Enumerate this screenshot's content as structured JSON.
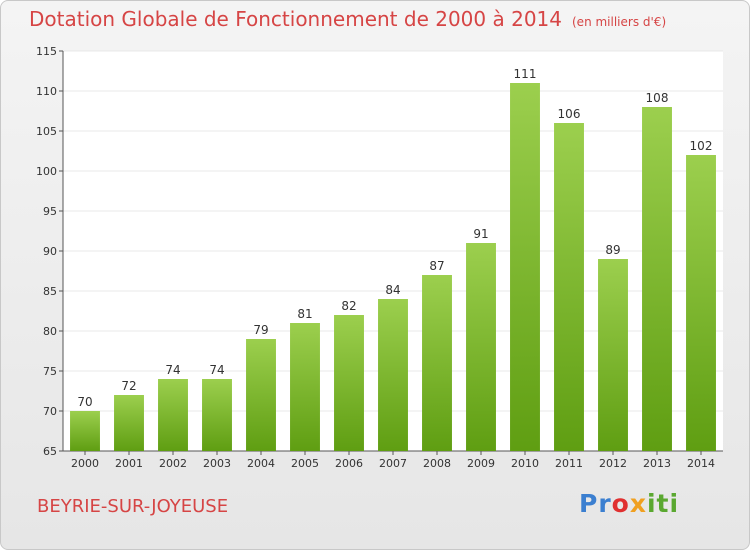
{
  "title": "Dotation Globale de Fonctionnement de 2000 à 2014",
  "unit": "(en milliers d'€)",
  "commune": "BEYRIE-SUR-JOYEUSE",
  "logo": {
    "p1": "Pr",
    "p2": "o",
    "p3": "x",
    "p4": "iti"
  },
  "colors": {
    "bar_top": "#9ccf4e",
    "bar_bottom": "#5f9e12",
    "title": "#d64545",
    "grid": "#e8e8e8"
  },
  "chart_data": {
    "type": "bar",
    "title": "Dotation Globale de Fonctionnement de 2000 à 2014",
    "xlabel": "",
    "ylabel": "",
    "categories": [
      "2000",
      "2001",
      "2002",
      "2003",
      "2004",
      "2005",
      "2006",
      "2007",
      "2008",
      "2009",
      "2010",
      "2011",
      "2012",
      "2013",
      "2014"
    ],
    "values": [
      70,
      72,
      74,
      74,
      79,
      81,
      82,
      84,
      87,
      91,
      111,
      106,
      89,
      108,
      102
    ],
    "ylim": [
      65,
      115
    ],
    "yticks": [
      65,
      70,
      75,
      80,
      85,
      90,
      95,
      100,
      105,
      110,
      115
    ],
    "grid": true,
    "legend": "none"
  }
}
